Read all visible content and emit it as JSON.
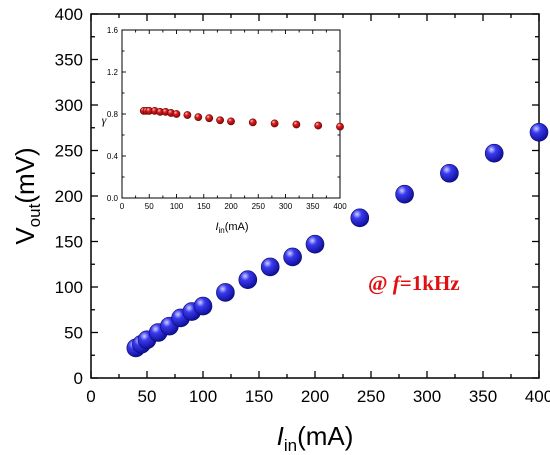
{
  "chart_data": [
    {
      "id": "main",
      "type": "scatter",
      "xlabel_var": "I",
      "xlabel_sub": "in",
      "xlabel_unit": "(mA)",
      "ylabel_var": "V",
      "ylabel_sub": "out",
      "ylabel_unit": "(mV)",
      "xlim": [
        0,
        400
      ],
      "ylim": [
        0,
        400
      ],
      "xticks": [
        "0",
        "50",
        "100",
        "150",
        "200",
        "250",
        "300",
        "350",
        "400"
      ],
      "yticks": [
        "0",
        "50",
        "100",
        "150",
        "200",
        "250",
        "300",
        "350",
        "400"
      ],
      "grid": false,
      "marker_color": "#1f1fe0",
      "annotation": {
        "prefix": "@ ",
        "var": "f",
        "rest": "=1kHz",
        "color": "#e01010"
      },
      "series": [
        {
          "x": [
            40,
            45,
            50,
            60,
            70,
            80,
            90,
            100,
            120,
            140,
            160,
            180,
            200,
            240,
            280,
            320,
            360,
            400
          ],
          "y": [
            33,
            37,
            42,
            50,
            57,
            66,
            73,
            79,
            94,
            108,
            122,
            133,
            147,
            176,
            202,
            225,
            247,
            270
          ]
        }
      ]
    },
    {
      "id": "inset",
      "type": "scatter",
      "xlabel_var": "I",
      "xlabel_sub": "in",
      "xlabel_unit": "(mA)",
      "ylabel_var": "γ",
      "xlim": [
        0,
        400
      ],
      "ylim": [
        0.0,
        1.6
      ],
      "xticks": [
        "0",
        "50",
        "100",
        "150",
        "200",
        "250",
        "300",
        "350",
        "400"
      ],
      "yticks": [
        "0.0",
        "0.4",
        "0.8",
        "1.2",
        "1.6"
      ],
      "grid": false,
      "marker_color": "#d41a1a",
      "series": [
        {
          "x": [
            40,
            45,
            50,
            60,
            70,
            80,
            90,
            100,
            120,
            140,
            160,
            180,
            200,
            240,
            280,
            320,
            360,
            400
          ],
          "y": [
            0.83,
            0.83,
            0.83,
            0.83,
            0.82,
            0.82,
            0.81,
            0.8,
            0.79,
            0.77,
            0.76,
            0.74,
            0.73,
            0.72,
            0.71,
            0.7,
            0.69,
            0.68
          ]
        }
      ]
    }
  ]
}
